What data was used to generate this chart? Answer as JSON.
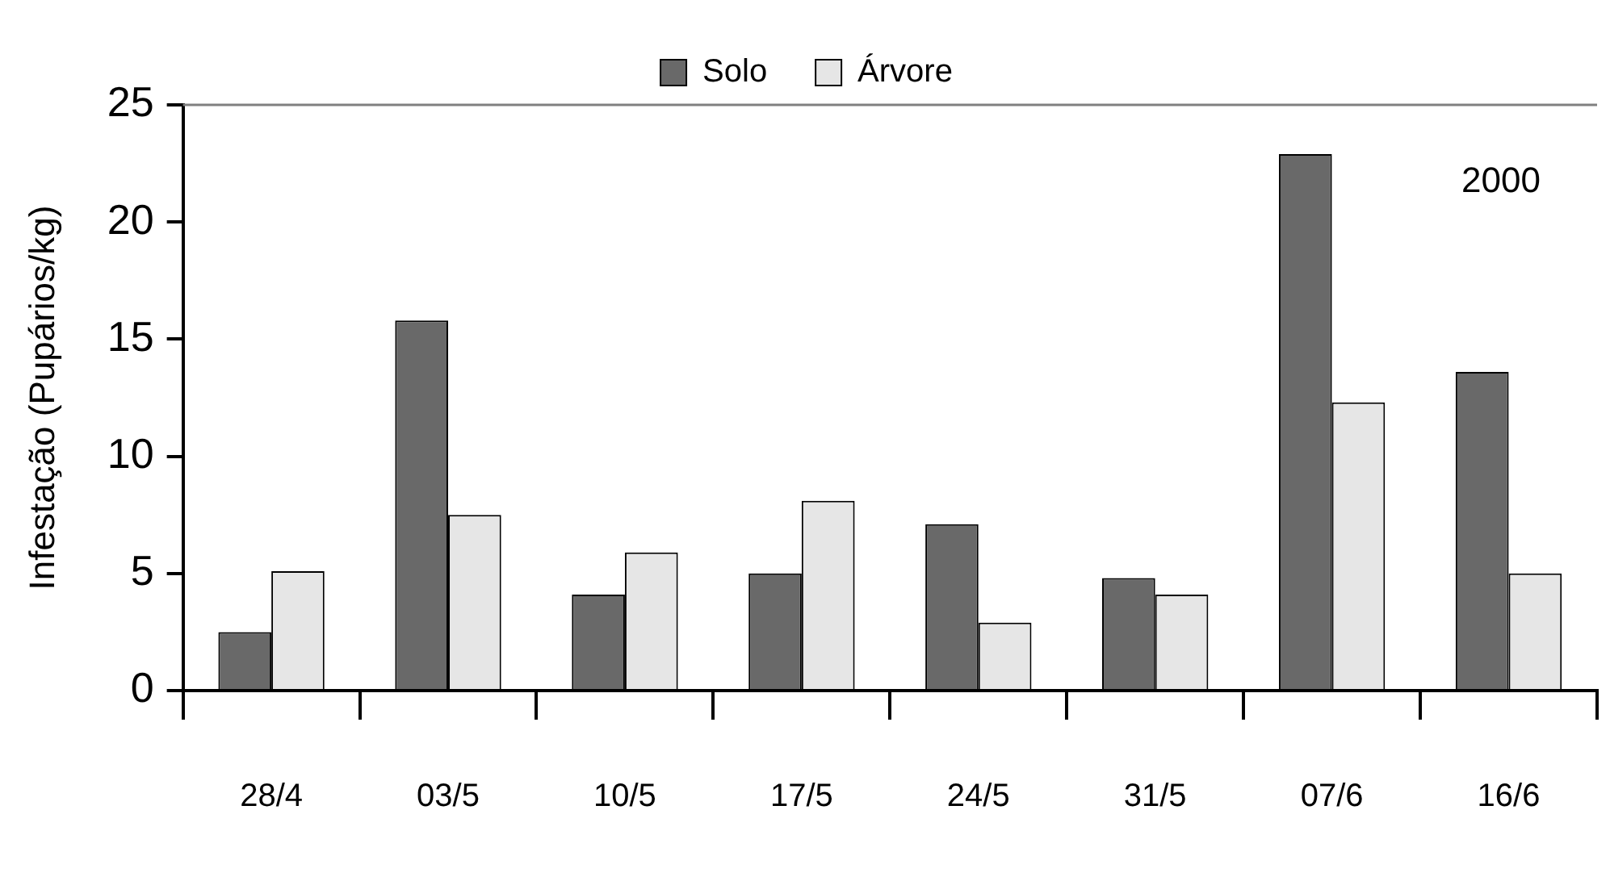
{
  "chart_data": {
    "type": "bar",
    "ylabel": "Infestação (Pupários/kg)",
    "categories": [
      "28/4",
      "03/5",
      "10/5",
      "17/5",
      "24/5",
      "31/5",
      "07/6",
      "16/6"
    ],
    "series": [
      {
        "name": "Solo",
        "color": "#696969",
        "values": [
          2.5,
          15.8,
          4.1,
          5.0,
          7.1,
          4.8,
          22.9,
          13.6
        ]
      },
      {
        "name": "Árvore",
        "color": "#e6e6e6",
        "values": [
          5.1,
          7.5,
          5.9,
          8.1,
          2.9,
          4.1,
          12.3,
          5.0
        ]
      }
    ],
    "ylim": [
      0,
      25
    ],
    "yticks": [
      0,
      5,
      10,
      15,
      20,
      25
    ],
    "grid": false,
    "legend": "top",
    "annotations": [
      "2000"
    ]
  }
}
